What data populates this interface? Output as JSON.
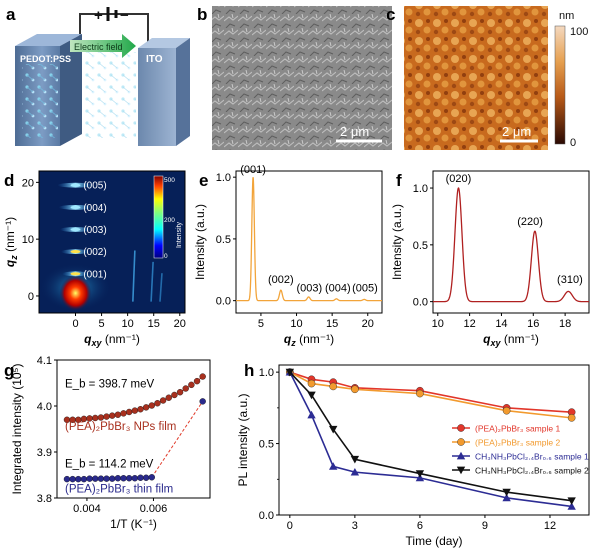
{
  "panel_labels": {
    "a": "a",
    "b": "b",
    "c": "c",
    "d": "d",
    "e": "e",
    "f": "f",
    "g": "g",
    "h": "h"
  },
  "panel_a": {
    "plus": "+",
    "minus": "−",
    "field_label": "Electric field",
    "left_electrode": "PEDOT:PSS",
    "right_electrode": "ITO"
  },
  "panel_b": {
    "scale_bar": "2 μm"
  },
  "panel_c": {
    "scale_bar": "2 μm",
    "colorbar_unit": "nm",
    "colorbar_max": "100",
    "colorbar_min": "0"
  },
  "panel_d": {
    "reflections": [
      "(005)",
      "(004)",
      "(003)",
      "(002)",
      "(001)"
    ],
    "colorbar_max": "500",
    "colorbar_mid": "200",
    "colorbar_min": "0",
    "colorbar_label": "Intensity"
  },
  "chart_data": [
    {
      "panel": "d",
      "type": "heatmap",
      "xlabel_main": "q",
      "xlabel_sub": "xy",
      "xlabel_unit": " (nm⁻¹)",
      "ylabel_main": "q",
      "ylabel_sub": "z",
      "ylabel_unit": " (nm⁻¹)",
      "xlim": [
        -7,
        21
      ],
      "ylim": [
        -3,
        22
      ],
      "xticks": [
        "0",
        "5",
        "10",
        "15",
        "20"
      ],
      "xtick_values": [
        0,
        5,
        10,
        15,
        20
      ],
      "yticks": [
        "0",
        "10",
        "20"
      ],
      "ytick_values": [
        0,
        10,
        20
      ]
    },
    {
      "panel": "e",
      "type": "line",
      "xlabel_main": "q",
      "xlabel_sub": "z",
      "xlabel_unit": " (nm⁻¹)",
      "ylabel": "Intensity (a.u.)",
      "xlim": [
        1.5,
        22
      ],
      "ylim": [
        -0.1,
        1.05
      ],
      "xticks": [
        "5",
        "10",
        "15",
        "20"
      ],
      "xtick_values": [
        5,
        10,
        15,
        20
      ],
      "yticks": [
        "0.0",
        "0.5",
        "1.0"
      ],
      "ytick_values": [
        0.0,
        0.5,
        1.0
      ],
      "color": "#f2a43a",
      "peaks": [
        {
          "x": 3.9,
          "h": 1.0,
          "w": 0.18
        },
        {
          "x": 7.8,
          "h": 0.085,
          "w": 0.2
        },
        {
          "x": 11.7,
          "h": 0.03,
          "w": 0.2
        },
        {
          "x": 15.6,
          "h": 0.015,
          "w": 0.2
        },
        {
          "x": 19.5,
          "h": 0.01,
          "w": 0.2
        }
      ],
      "peak_labels": [
        {
          "text": "(001)",
          "x": 3.9,
          "y": 1.0
        },
        {
          "text": "(002)",
          "x": 7.8,
          "y": 0.11
        },
        {
          "text": "(003)",
          "x": 11.8,
          "y": 0.04
        },
        {
          "text": "(004)",
          "x": 15.8,
          "y": 0.04
        },
        {
          "text": "(005)",
          "x": 19.6,
          "y": 0.04
        }
      ]
    },
    {
      "panel": "f",
      "type": "line",
      "xlabel_main": "q",
      "xlabel_sub": "xy",
      "xlabel_unit": " (nm⁻¹)",
      "ylabel": "Intensity (a.u.)",
      "xlim": [
        9.7,
        19.5
      ],
      "ylim": [
        -0.1,
        1.15
      ],
      "xticks": [
        "10",
        "12",
        "14",
        "16",
        "18"
      ],
      "xtick_values": [
        10,
        12,
        14,
        16,
        18
      ],
      "yticks": [
        "0.0",
        "0.5",
        "1.0"
      ],
      "ytick_values": [
        0.0,
        0.5,
        1.0
      ],
      "color": "#b02020",
      "peaks": [
        {
          "x": 11.3,
          "h": 1.0,
          "w": 0.22
        },
        {
          "x": 16.1,
          "h": 0.62,
          "w": 0.22
        },
        {
          "x": 18.2,
          "h": 0.09,
          "w": 0.25
        }
      ],
      "peak_labels": [
        {
          "text": "(020)",
          "x": 11.3,
          "y": 1.02
        },
        {
          "text": "(220)",
          "x": 15.8,
          "y": 0.64
        },
        {
          "text": "(310)",
          "x": 18.3,
          "y": 0.13
        }
      ]
    },
    {
      "panel": "g",
      "type": "scatter",
      "xlabel": "1/T (K⁻¹)",
      "ylabel": "Integrated intensity (10⁵)",
      "xlim": [
        0.0031,
        0.0077
      ],
      "ylim": [
        3.8,
        4.1
      ],
      "xticks": [
        "0.004",
        "0.006"
      ],
      "xtick_values": [
        0.004,
        0.006
      ],
      "yticks": [
        "3.8",
        "3.9",
        "4.0",
        "4.1"
      ],
      "ytick_values": [
        3.8,
        3.9,
        4.0,
        4.1
      ],
      "series": [
        {
          "name": "(PEA)₂PbBr₃ NPs film",
          "annotation": "E_b = 398.7 meV",
          "color": "#a8301e",
          "x": [
            0.0034,
            0.00357,
            0.00374,
            0.00391,
            0.00408,
            0.00425,
            0.00442,
            0.00459,
            0.00476,
            0.00493,
            0.0051,
            0.00527,
            0.00544,
            0.00561,
            0.00578,
            0.00595,
            0.00612,
            0.00629,
            0.00646,
            0.00663,
            0.0068,
            0.00697,
            0.00714,
            0.00731,
            0.00748
          ],
          "y": [
            3.97,
            3.97,
            3.97,
            3.972,
            3.973,
            3.974,
            3.975,
            3.977,
            3.979,
            3.981,
            3.984,
            3.987,
            3.99,
            3.993,
            3.997,
            4.001,
            4.006,
            4.012,
            4.018,
            4.024,
            4.03,
            4.038,
            4.046,
            4.054,
            4.064
          ]
        },
        {
          "name": "(PEA)₂PbBr₃ thin film",
          "annotation": "E_b = 114.2 meV",
          "color": "#2a2a8c",
          "x": [
            0.0034,
            0.00357,
            0.00374,
            0.00391,
            0.00408,
            0.00425,
            0.00442,
            0.00459,
            0.00476,
            0.00493,
            0.0051,
            0.00527,
            0.00544,
            0.00561,
            0.00578,
            0.00595,
            0.00748
          ],
          "y": [
            3.841,
            3.841,
            3.841,
            3.841,
            3.842,
            3.842,
            3.842,
            3.842,
            3.842,
            3.843,
            3.843,
            3.843,
            3.843,
            3.844,
            3.844,
            3.845,
            4.01
          ]
        }
      ]
    },
    {
      "panel": "h",
      "type": "line",
      "xlabel": "Time (day)",
      "ylabel": "PL intensity (a.u.)",
      "xlim": [
        -0.5,
        13.8
      ],
      "ylim": [
        0.0,
        1.05
      ],
      "xticks": [
        "0",
        "3",
        "6",
        "9",
        "12"
      ],
      "xtick_values": [
        0,
        3,
        6,
        9,
        12
      ],
      "yticks": [
        "0.0",
        "0.5",
        "1.0"
      ],
      "ytick_values": [
        0.0,
        0.5,
        1.0
      ],
      "yminor_values": [
        0.25,
        0.75
      ],
      "series": [
        {
          "name": "(PEA)₂PbBr₃ sample 1",
          "color": "#e2362a",
          "marker": "circle",
          "x": [
            0,
            1,
            2,
            3,
            6,
            10,
            13
          ],
          "y": [
            1.0,
            0.95,
            0.93,
            0.89,
            0.87,
            0.75,
            0.72
          ]
        },
        {
          "name": "(PEA)₂PbBr₃ sample 2",
          "color": "#f29a2e",
          "marker": "circle",
          "x": [
            0,
            1,
            2,
            3,
            6,
            10,
            13
          ],
          "y": [
            1.0,
            0.92,
            0.9,
            0.88,
            0.85,
            0.73,
            0.68
          ]
        },
        {
          "name": "CH₃NH₃PbCl₂.₄Br₀.₆ sample 1",
          "color": "#2c2c94",
          "marker": "triangle-up",
          "x": [
            0,
            1,
            2,
            3,
            6,
            10,
            13
          ],
          "y": [
            1.0,
            0.7,
            0.34,
            0.3,
            0.26,
            0.12,
            0.06
          ]
        },
        {
          "name": "CH₃NH₃PbCl₂.₄Br₀.₆ sample 2",
          "color": "#111111",
          "marker": "triangle-down",
          "x": [
            0,
            1,
            2,
            3,
            6,
            10,
            13
          ],
          "y": [
            1.0,
            0.84,
            0.6,
            0.39,
            0.29,
            0.16,
            0.1
          ]
        }
      ]
    }
  ]
}
